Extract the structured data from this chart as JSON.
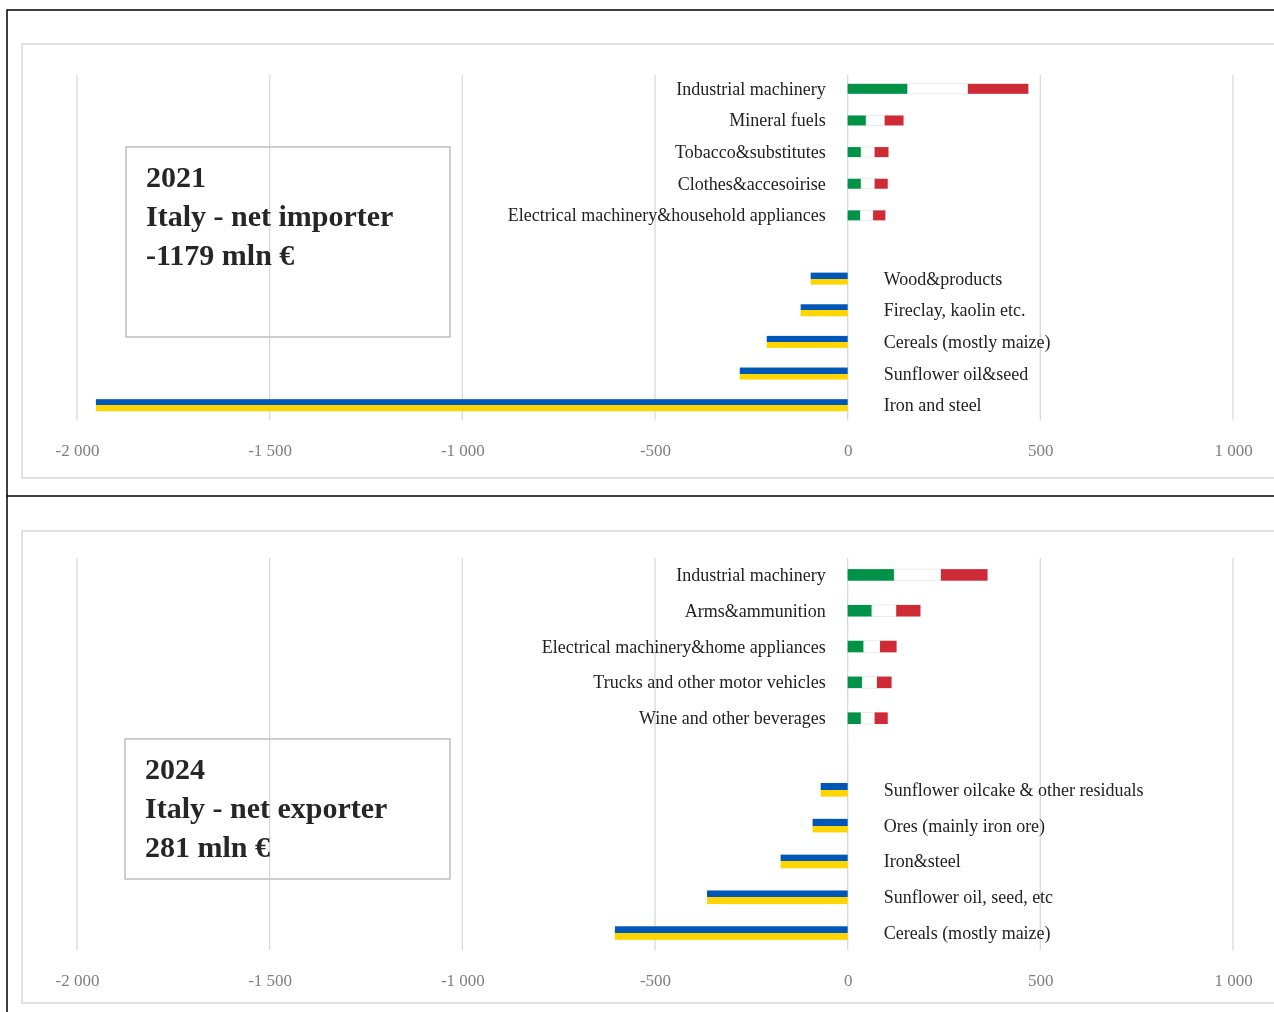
{
  "chart_data": [
    {
      "type": "bar",
      "orientation": "horizontal",
      "stacked": true,
      "grid": "x",
      "categories": [
        "Industrial machinery",
        "Mineral fuels",
        "Tobacco&substitutes",
        "Clothes&accesoirise",
        "Electrical machinery&household appliances",
        null,
        "Wood&products",
        "Fireclay, kaolin etc.",
        "Cereals (mostly maize)",
        "Sunflower oil&seed",
        "Iron and steel"
      ],
      "series": [
        {
          "color": "#009246",
          "values": [
            156,
            48,
            35,
            35,
            33,
            null,
            null,
            null,
            null,
            null,
            null
          ]
        },
        {
          "color": "#ffffff",
          "values": [
            156,
            48,
            35,
            35,
            33,
            null,
            null,
            null,
            null,
            null,
            null
          ]
        },
        {
          "color": "#ce2b37",
          "values": [
            157,
            49,
            36,
            34,
            32,
            null,
            null,
            null,
            null,
            null,
            null
          ]
        },
        {
          "color": "#0057b7",
          "values": [
            null,
            null,
            null,
            null,
            null,
            null,
            -96,
            -122,
            -210,
            -280,
            -1951
          ]
        }
      ],
      "xlim": [
        -2000,
        1000
      ],
      "xticks": [
        {
          "value": -2000,
          "label": "-2 000"
        },
        {
          "value": -1500,
          "label": "-1 500"
        },
        {
          "value": -1000,
          "label": "-1 000"
        },
        -500,
        0,
        500,
        {
          "value": 1000,
          "label": "1 000"
        }
      ],
      "annotations": [
        "2021",
        "Italy - net importer",
        "-1179 mln €"
      ]
    },
    {
      "type": "bar",
      "orientation": "horizontal",
      "stacked": true,
      "grid": "x",
      "categories": [
        "Industrial machinery",
        "Arms&ammunition",
        "Electrical machinery&home appliances",
        "Trucks and other motor vehicles",
        "Wine and other beverages",
        null,
        "Sunflower oilcake & other residuals",
        "Ores (mainly iron ore)",
        "Iron&steel",
        "Sunflower oil, seed, etc",
        "Cereals (mostly maize)"
      ],
      "series": [
        {
          "color": "#009246",
          "values": [
            121,
            63,
            42,
            38,
            35,
            null,
            null,
            null,
            null,
            null,
            null
          ]
        },
        {
          "color": "#ffffff",
          "values": [
            121,
            63,
            42,
            38,
            35,
            null,
            null,
            null,
            null,
            null,
            null
          ]
        },
        {
          "color": "#ce2b37",
          "values": [
            121,
            63,
            43,
            38,
            34,
            null,
            null,
            null,
            null,
            null,
            null
          ]
        },
        {
          "color": "#0057b7",
          "values": [
            null,
            null,
            null,
            null,
            null,
            null,
            -70,
            -91,
            -174,
            -365,
            -604
          ]
        }
      ],
      "xlim": [
        -2000,
        1000
      ],
      "xticks": [
        {
          "value": -2000,
          "label": "-2 000"
        },
        {
          "value": -1500,
          "label": "-1 500"
        },
        {
          "value": -1000,
          "label": "-1 000"
        },
        -500,
        0,
        500,
        {
          "value": 1000,
          "label": "1 000"
        }
      ],
      "annotations": [
        "2024",
        "Italy - net exporter",
        "281 mln €"
      ]
    }
  ]
}
